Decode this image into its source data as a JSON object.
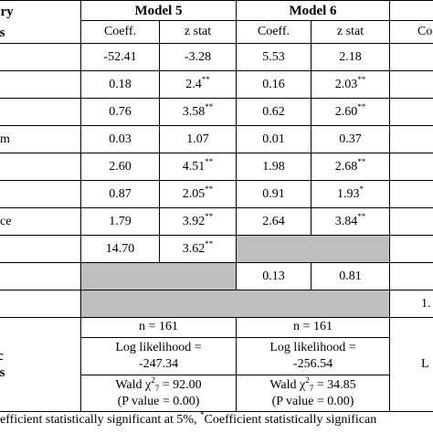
{
  "header": {
    "stub": [
      "ory",
      "es"
    ],
    "models": [
      "Model 5",
      "Model 6"
    ]
  },
  "subheaders": [
    "Coeff.",
    "z stat",
    "Coeff.",
    "z stat",
    "Co"
  ],
  "rows": [
    {
      "cells": [
        {
          "v": "-52.41"
        },
        {
          "v": "-3.28"
        },
        {
          "v": "5.53"
        },
        {
          "v": "2.18"
        }
      ]
    },
    {
      "cells": [
        {
          "v": "0.18"
        },
        {
          "v": "2.4",
          "sup": "**"
        },
        {
          "v": "0.16"
        },
        {
          "v": "2.03",
          "sup": "**"
        }
      ]
    },
    {
      "cells": [
        {
          "v": "0.76"
        },
        {
          "v": "3.58",
          "sup": "**"
        },
        {
          "v": "0.62"
        },
        {
          "v": "2.60",
          "sup": "**"
        }
      ]
    },
    {
      "label": "om",
      "cells": [
        {
          "v": "0.03"
        },
        {
          "v": "1.07"
        },
        {
          "v": "0.01"
        },
        {
          "v": "0.37"
        }
      ]
    },
    {
      "cells": [
        {
          "v": "2.60"
        },
        {
          "v": "4.51",
          "sup": "**"
        },
        {
          "v": "1.98"
        },
        {
          "v": "2.68",
          "sup": "**"
        }
      ]
    },
    {
      "cells": [
        {
          "v": "0.87"
        },
        {
          "v": "2.05",
          "sup": "**"
        },
        {
          "v": "0.91"
        },
        {
          "v": "1.93",
          "sup": "*"
        }
      ]
    },
    {
      "label": "nce",
      "cells": [
        {
          "v": "1.79"
        },
        {
          "v": "3.92",
          "sup": "**"
        },
        {
          "v": "2.64"
        },
        {
          "v": "3.84",
          "sup": "**"
        }
      ]
    },
    {
      "cells": [
        {
          "v": "14.70"
        },
        {
          "v": "3.62",
          "sup": "**"
        },
        null,
        null
      ]
    },
    {
      "cells": [
        null,
        null,
        {
          "v": "0.13"
        },
        {
          "v": "0.81"
        }
      ]
    },
    {
      "cells": [
        null,
        null,
        null,
        null
      ],
      "m7": "1."
    }
  ],
  "diagnostics": {
    "label": [
      "ic",
      "es"
    ],
    "models": [
      {
        "n": "n = 161",
        "ll": [
          "Log likelihood =",
          "-247.34"
        ],
        "wald": {
          "pre": "Wald χ",
          "sup": "2",
          "sub": "7",
          "post": " = 92.00"
        },
        "p": "(P value = 0.00)"
      },
      {
        "n": "n = 161",
        "ll": [
          "Log likelihood =",
          "-256.54"
        ],
        "wald": {
          "pre": "Wald χ",
          "sup": "2",
          "sub": "7",
          "post": " = 34.85"
        },
        "p": "(P value = 0.00)"
      }
    ],
    "m7": "L"
  },
  "footer": {
    "pre": "efficient statistically significant at 5%, ",
    "sup": "*",
    "post": "Coefficient statistically significan"
  }
}
